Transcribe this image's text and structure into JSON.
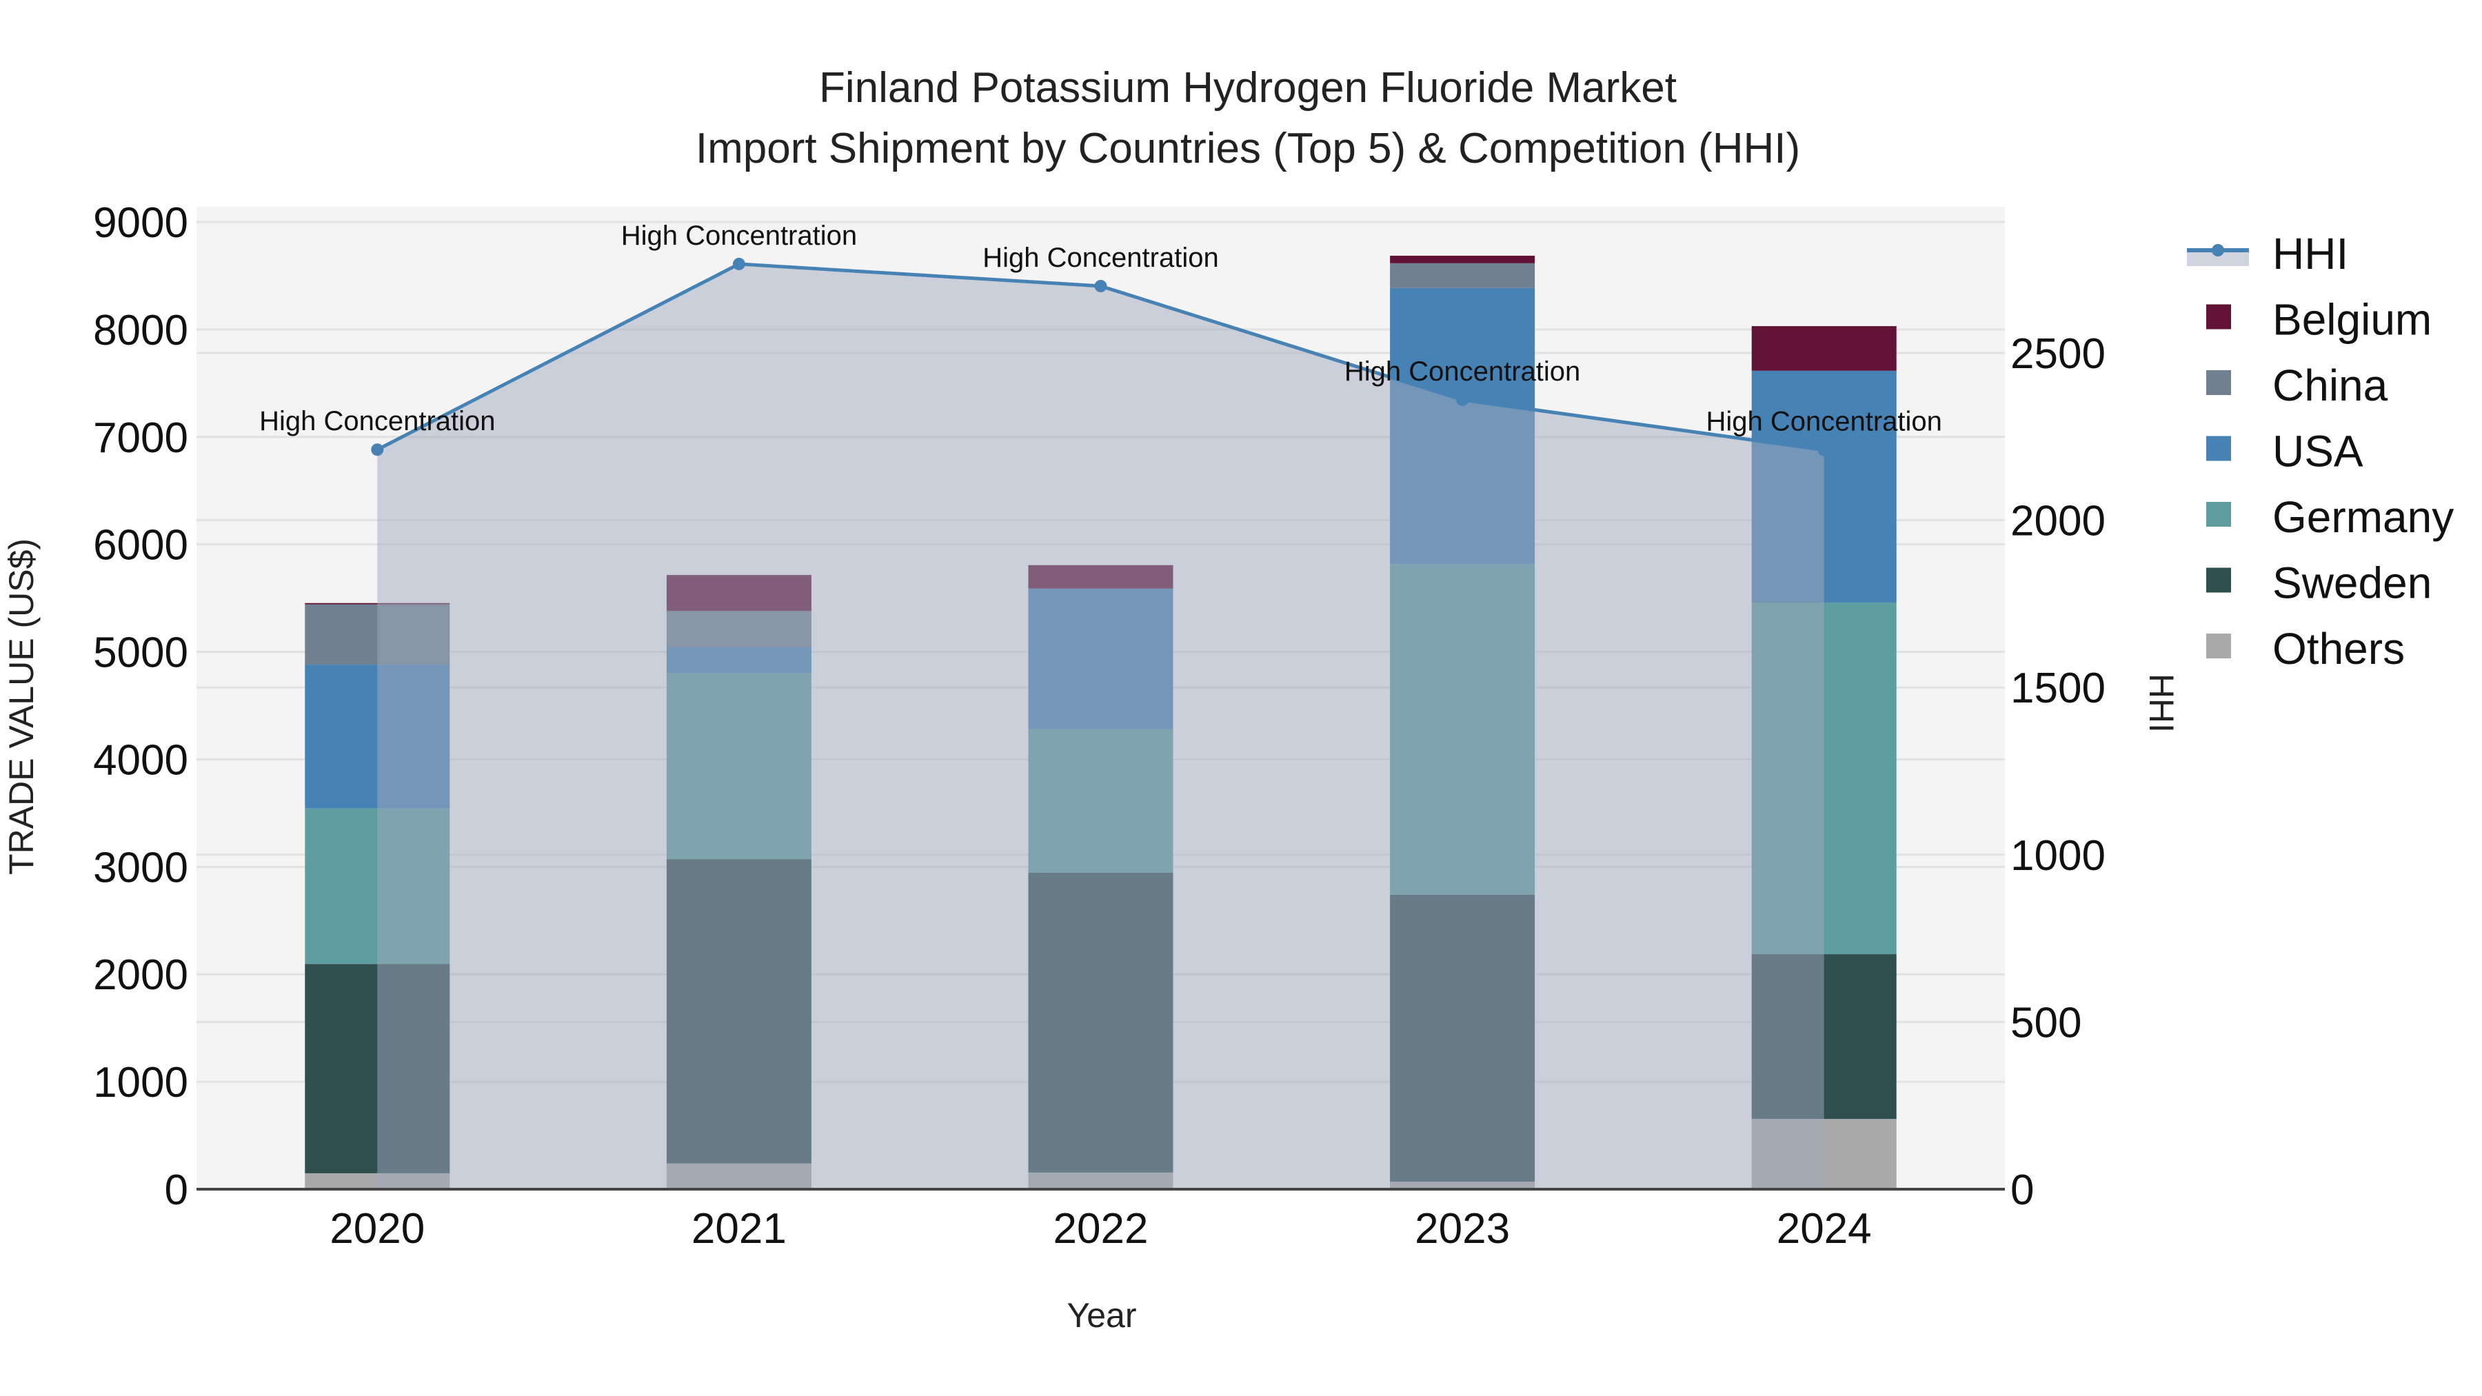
{
  "chart_data": {
    "type": "bar",
    "stacked": true,
    "title": "Finland Potassium Hydrogen Fluoride Market",
    "subtitle": "Import Shipment by Countries (Top 5) & Competition (HHI)",
    "xlabel": "Year",
    "ylabel": "TRADE VALUE (US$)",
    "y2label": "HHI",
    "categories": [
      "2020",
      "2021",
      "2022",
      "2023",
      "2024"
    ],
    "ylim": [
      0,
      9000
    ],
    "yticks": [
      0,
      1000,
      2000,
      3000,
      4000,
      5000,
      6000,
      7000,
      8000,
      9000
    ],
    "y2lim": [
      0,
      2900
    ],
    "y2ticks": [
      0,
      500,
      1000,
      1500,
      2000,
      2500
    ],
    "series": [
      {
        "name": "Others",
        "color": "#a9a9a9",
        "values": [
          148,
          240,
          155,
          70,
          654
        ]
      },
      {
        "name": "Sweden",
        "color": "#2f4f4f",
        "values": [
          1948,
          2830,
          2790,
          2670,
          1533
        ]
      },
      {
        "name": "Germany",
        "color": "#5f9ea0",
        "values": [
          1447,
          1730,
          1337,
          3076,
          3272
        ]
      },
      {
        "name": "USA",
        "color": "#4682b4",
        "values": [
          1338,
          245,
          1307,
          2569,
          2157
        ]
      },
      {
        "name": "China",
        "color": "#708090",
        "values": [
          561,
          335,
          0,
          231,
          0
        ]
      },
      {
        "name": "Belgium",
        "color": "#601336",
        "values": [
          12,
          335,
          218,
          70,
          415
        ]
      }
    ],
    "line_series": {
      "name": "HHI",
      "axis": "y2",
      "color": "#4682b4",
      "fill": "tozeroy",
      "values": [
        2211,
        2766,
        2700,
        2360,
        2210
      ],
      "annotations": [
        "High Concentration",
        "High Concentration",
        "High Concentration",
        "High Concentration",
        "High Concentration"
      ]
    },
    "legend": [
      "HHI",
      "Belgium",
      "China",
      "USA",
      "Germany",
      "Sweden",
      "Others"
    ],
    "legend_position": "right",
    "grid": true
  }
}
